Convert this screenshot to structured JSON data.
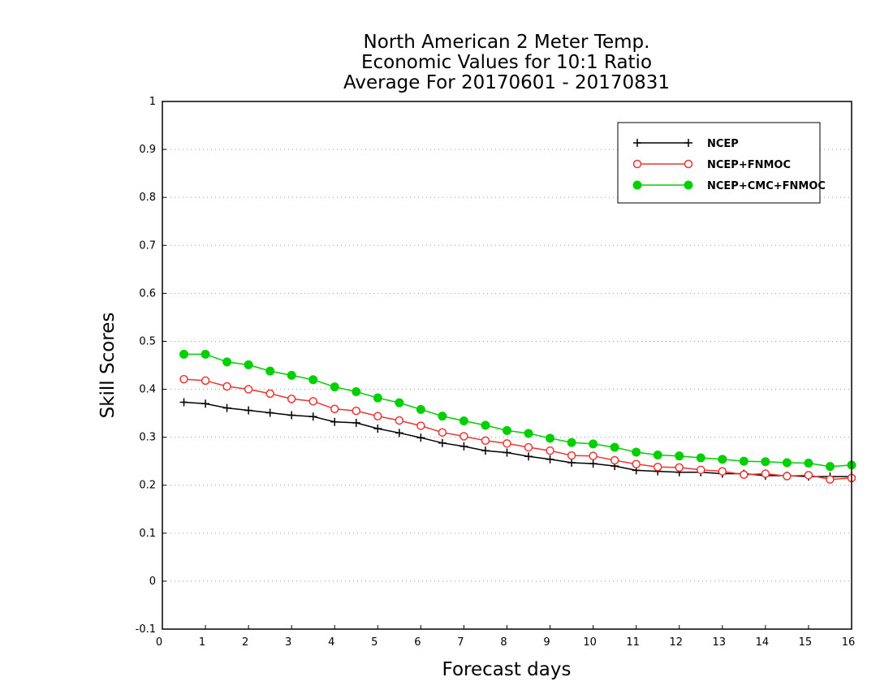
{
  "chart_data": {
    "type": "line",
    "title_lines": [
      "North American 2 Meter Temp.",
      "Economic Values for 10:1 Ratio",
      "Average For 20170601 - 20170831"
    ],
    "xlabel": "Forecast days",
    "ylabel": "Skill Scores",
    "xlim": [
      0,
      16
    ],
    "ylim": [
      -0.1,
      1
    ],
    "x_ticks": [
      "0",
      "1",
      "2",
      "3",
      "4",
      "5",
      "6",
      "7",
      "8",
      "9",
      "10",
      "11",
      "12",
      "13",
      "14",
      "15",
      "16"
    ],
    "y_ticks": [
      "-0.1",
      "0",
      "0.1",
      "0.2",
      "0.3",
      "0.4",
      "0.5",
      "0.6",
      "0.7",
      "0.8",
      "0.9",
      "1"
    ],
    "grid": "horizontal-dotted",
    "legend_position": "top-right",
    "x": [
      0.5,
      1,
      1.5,
      2,
      2.5,
      3,
      3.5,
      4,
      4.5,
      5,
      5.5,
      6,
      6.5,
      7,
      7.5,
      8,
      8.5,
      9,
      9.5,
      10,
      10.5,
      11,
      11.5,
      12,
      12.5,
      13,
      13.5,
      14,
      14.5,
      15,
      15.5,
      16
    ],
    "series": [
      {
        "name": "NCEP",
        "color": "#000000",
        "marker": "plus",
        "values": [
          0.373,
          0.37,
          0.361,
          0.356,
          0.351,
          0.346,
          0.343,
          0.332,
          0.33,
          0.318,
          0.309,
          0.299,
          0.288,
          0.281,
          0.272,
          0.268,
          0.26,
          0.254,
          0.247,
          0.245,
          0.24,
          0.231,
          0.229,
          0.227,
          0.227,
          0.224,
          0.224,
          0.22,
          0.22,
          0.218,
          0.218,
          0.218
        ]
      },
      {
        "name": "NCEP+FNMOC",
        "color": "#ee3333",
        "marker": "open-circle",
        "values": [
          0.421,
          0.418,
          0.406,
          0.4,
          0.391,
          0.38,
          0.375,
          0.359,
          0.355,
          0.344,
          0.335,
          0.324,
          0.31,
          0.302,
          0.293,
          0.287,
          0.279,
          0.272,
          0.262,
          0.261,
          0.252,
          0.244,
          0.238,
          0.237,
          0.232,
          0.229,
          0.222,
          0.224,
          0.219,
          0.221,
          0.212,
          0.215
        ]
      },
      {
        "name": "NCEP+CMC+FNMOC",
        "color": "#00d000",
        "marker": "filled-circle",
        "values": [
          0.473,
          0.473,
          0.457,
          0.451,
          0.438,
          0.429,
          0.42,
          0.405,
          0.395,
          0.382,
          0.372,
          0.358,
          0.344,
          0.334,
          0.325,
          0.314,
          0.308,
          0.298,
          0.289,
          0.286,
          0.279,
          0.269,
          0.263,
          0.261,
          0.257,
          0.254,
          0.25,
          0.249,
          0.247,
          0.246,
          0.239,
          0.242
        ]
      }
    ]
  }
}
